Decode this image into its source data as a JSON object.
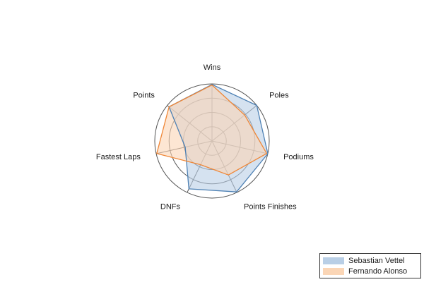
{
  "chart_data": {
    "type": "radar",
    "axes": [
      "Wins",
      "Poles",
      "Podiums",
      "Points Finishes",
      "DNFs",
      "Fastest Laps",
      "Points"
    ],
    "rmax": 1.0,
    "grid_levels": [
      0.25,
      0.5,
      0.75,
      1.0
    ],
    "series": [
      {
        "name": "Sebastian Vettel",
        "values": [
          0.99,
          1.0,
          1.0,
          0.99,
          0.93,
          0.48,
          0.96
        ],
        "line_color": "#4e81b4",
        "fill_color": "#b9cfe6"
      },
      {
        "name": "Fernando Alonso",
        "values": [
          0.98,
          0.73,
          0.98,
          0.66,
          0.46,
          0.99,
          0.96
        ],
        "line_color": "#ef8636",
        "fill_color": "#fbd6b6"
      }
    ],
    "legend_position": "bottom-right"
  }
}
